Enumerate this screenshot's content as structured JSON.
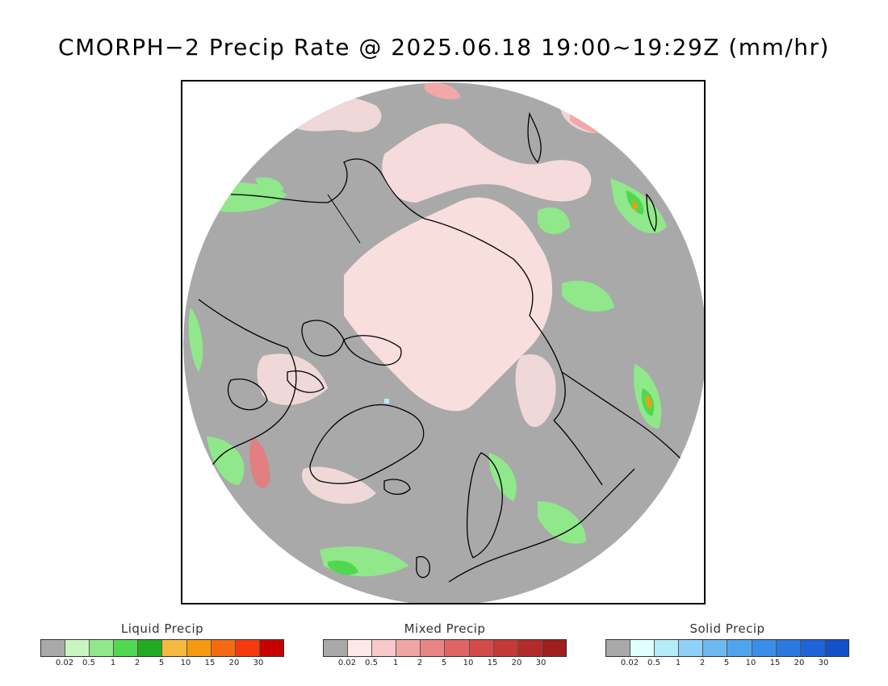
{
  "header": {
    "title": "CMORPH−2 Precip Rate @ 2025.06.18 19:00~19:29Z (mm/hr)"
  },
  "map": {
    "projection": "polar stereographic (north pole)",
    "background_color": "#a9a9a9",
    "coastline_color": "#000000"
  },
  "legends": [
    {
      "title": "Liquid Precip",
      "colors": [
        "#a9a9a9",
        "#c8f5c0",
        "#90e88a",
        "#50d850",
        "#22aa22",
        "#f5b840",
        "#f59a10",
        "#f56a10",
        "#f53a10",
        "#c80000"
      ],
      "ticks": [
        "0.02",
        "0.5",
        "1",
        "2",
        "5",
        "10",
        "15",
        "20",
        "30"
      ]
    },
    {
      "title": "Mixed Precip",
      "colors": [
        "#a9a9a9",
        "#fde8e8",
        "#f9c8c8",
        "#f0a4a4",
        "#e88484",
        "#e06464",
        "#d44a4a",
        "#c43838",
        "#b42a2a",
        "#a01e1e"
      ],
      "ticks": [
        "0.02",
        "0.5",
        "1",
        "2",
        "5",
        "10",
        "15",
        "20",
        "30"
      ]
    },
    {
      "title": "Solid Precip",
      "colors": [
        "#a9a9a9",
        "#e0ffff",
        "#b4ecf8",
        "#90d0f8",
        "#6cb8f0",
        "#50a4ec",
        "#3a8ee8",
        "#2a78e0",
        "#1e64d8",
        "#1450c8"
      ],
      "ticks": [
        "0.02",
        "0.5",
        "1",
        "2",
        "5",
        "10",
        "15",
        "20",
        "30"
      ]
    }
  ]
}
